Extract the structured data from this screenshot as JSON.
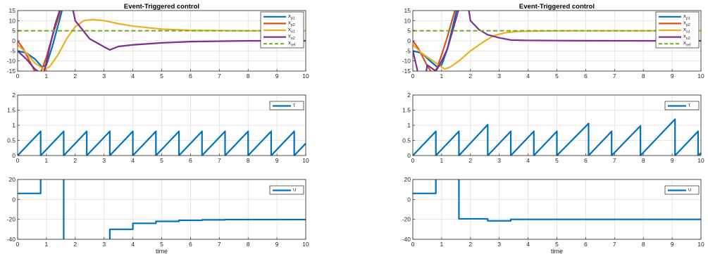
{
  "chart_data": [
    {
      "type": "line",
      "title": "Event-Triggered control",
      "xlabel": "",
      "ylabel": "",
      "xlim": [
        0,
        10
      ],
      "ylim": [
        -15,
        15
      ],
      "xticks": [
        0,
        1,
        2,
        3,
        4,
        5,
        6,
        7,
        8,
        9,
        10
      ],
      "yticks": [
        -15,
        -10,
        -5,
        0,
        5,
        10,
        15
      ],
      "grid": true,
      "legend_position": "top-right",
      "series": [
        {
          "name": "x_p1",
          "legend_base": "x",
          "legend_sub": "p1",
          "color": "#0072BD",
          "style": "solid",
          "x": [
            0,
            0.3,
            0.6,
            0.85,
            1.0,
            1.2,
            1.45,
            1.7
          ],
          "y": [
            -5,
            -6,
            -9,
            -13,
            -12,
            -3,
            10,
            24
          ]
        },
        {
          "name": "x_p2",
          "legend_base": "x",
          "legend_sub": "p2",
          "color": "#D95319",
          "style": "solid",
          "x": [
            0,
            0.2,
            0.45,
            0.7,
            0.85,
            1.0,
            1.2,
            1.45,
            1.7
          ],
          "y": [
            0,
            -4,
            -11,
            -18,
            -14,
            -8,
            2,
            13,
            25
          ]
        },
        {
          "name": "x_o1",
          "legend_base": "x",
          "legend_sub": "o1",
          "color": "#EDB120",
          "style": "solid",
          "x": [
            0,
            0.3,
            0.6,
            0.9,
            1.1,
            1.4,
            1.7,
            2.0,
            2.3,
            2.6,
            3.0,
            3.5,
            4.0,
            5.0,
            6.0,
            7.0,
            8.0,
            10.0
          ],
          "y": [
            -2,
            -6,
            -11,
            -14,
            -13,
            -7,
            1,
            7,
            10,
            10.5,
            10,
            8.5,
            7.3,
            5.8,
            5.2,
            5.05,
            5.0,
            5.0
          ]
        },
        {
          "name": "x_o2",
          "legend_base": "x",
          "legend_sub": "o2",
          "color": "#7E2F8E",
          "style": "solid",
          "x": [
            0,
            0.3,
            0.6,
            0.9,
            1.1,
            1.3,
            1.55,
            1.75,
            2.0,
            2.5,
            3.0,
            3.2,
            3.5,
            4.0,
            5.0,
            6.0,
            8.0,
            10.0
          ],
          "y": [
            -5,
            -9,
            -14,
            -17,
            -4,
            8,
            19,
            27,
            10,
            1,
            -3,
            -4.5,
            -2.8,
            -2,
            -1,
            -0.4,
            0,
            0
          ]
        },
        {
          "name": "x_ref",
          "legend_base": "x",
          "legend_sub": "ref",
          "color": "#77AC30",
          "style": "dashed",
          "x": [
            0,
            10
          ],
          "y": [
            5,
            5
          ]
        }
      ]
    },
    {
      "type": "line",
      "title": "Event-Triggered control",
      "xlabel": "",
      "ylabel": "",
      "xlim": [
        0,
        10
      ],
      "ylim": [
        -15,
        15
      ],
      "xticks": [
        0,
        1,
        2,
        3,
        4,
        5,
        6,
        7,
        8,
        9,
        10
      ],
      "yticks": [
        -15,
        -10,
        -5,
        0,
        5,
        10,
        15
      ],
      "grid": true,
      "legend_position": "top-right",
      "series": [
        {
          "name": "x_p1",
          "legend_base": "x",
          "legend_sub": "p1",
          "color": "#0072BD",
          "style": "solid",
          "x": [
            0,
            0.3,
            0.6,
            0.85,
            1.0,
            1.2,
            1.4,
            1.6
          ],
          "y": [
            -5,
            -6,
            -10,
            -13,
            -12,
            -4,
            8,
            20
          ]
        },
        {
          "name": "x_p2",
          "legend_base": "x",
          "legend_sub": "p2",
          "color": "#D95319",
          "style": "solid",
          "x": [
            0,
            0.2,
            0.45,
            0.7,
            0.85,
            1.0,
            1.2,
            1.4,
            1.6
          ],
          "y": [
            0,
            -4,
            -11,
            -17,
            -13,
            -7,
            2,
            12,
            22
          ]
        },
        {
          "name": "x_o1",
          "legend_base": "x",
          "legend_sub": "o1",
          "color": "#EDB120",
          "style": "solid",
          "x": [
            0,
            0.3,
            0.6,
            0.9,
            1.1,
            1.3,
            1.6,
            2.0,
            2.4,
            2.8,
            3.2,
            3.6,
            4.0,
            5.0,
            6.0,
            8.0,
            10.0
          ],
          "y": [
            -2,
            -6,
            -9,
            -12,
            -14,
            -13,
            -10,
            -5,
            -1,
            2.5,
            4,
            4.6,
            4.8,
            4.95,
            5.0,
            5.0,
            5.0
          ]
        },
        {
          "name": "x_o2",
          "legend_base": "x",
          "legend_sub": "o2",
          "color": "#7E2F8E",
          "style": "solid",
          "x": [
            0,
            0.15,
            0.3,
            0.5,
            0.8,
            1.0,
            1.2,
            1.4,
            1.6,
            1.8,
            2.0,
            2.3,
            2.6,
            3.0,
            3.4,
            4.0,
            5.0,
            6.0,
            8.0,
            10.0
          ],
          "y": [
            -5,
            -14,
            -30,
            -12,
            -15,
            -10,
            -4,
            6,
            16,
            28,
            10,
            5.5,
            3,
            1.5,
            0.4,
            0.2,
            0.1,
            0.05,
            0,
            0
          ]
        },
        {
          "name": "x_ref",
          "legend_base": "x",
          "legend_sub": "ref",
          "color": "#77AC30",
          "style": "dashed",
          "x": [
            0,
            10
          ],
          "y": [
            5,
            5
          ]
        }
      ]
    },
    {
      "type": "line",
      "title": "",
      "xlabel": "",
      "ylabel": "",
      "xlim": [
        0,
        10
      ],
      "ylim": [
        0,
        2
      ],
      "xticks": [
        0,
        1,
        2,
        3,
        4,
        5,
        6,
        7,
        8,
        9,
        10
      ],
      "yticks": [
        0,
        0.5,
        1,
        1.5,
        2
      ],
      "grid": true,
      "legend_position": "top-right",
      "series": [
        {
          "name": "τ",
          "legend_base": "τ",
          "legend_sub": "",
          "color": "#0072BD",
          "style": "solid",
          "x": [
            0,
            0.8,
            0.8,
            1.6,
            1.6,
            2.4,
            2.4,
            3.2,
            3.2,
            4.0,
            4.0,
            4.8,
            4.8,
            5.6,
            5.6,
            6.4,
            6.4,
            7.2,
            7.2,
            8.0,
            8.0,
            8.8,
            8.8,
            9.6,
            9.6,
            10.0
          ],
          "y": [
            0,
            0.8,
            0,
            0.8,
            0,
            0.8,
            0,
            0.8,
            0,
            0.8,
            0,
            0.8,
            0,
            0.8,
            0,
            0.8,
            0,
            0.8,
            0,
            0.8,
            0,
            0.8,
            0,
            0.8,
            0,
            0.4
          ]
        }
      ]
    },
    {
      "type": "line",
      "title": "",
      "xlabel": "",
      "ylabel": "",
      "xlim": [
        0,
        10
      ],
      "ylim": [
        0,
        2
      ],
      "xticks": [
        0,
        1,
        2,
        3,
        4,
        5,
        6,
        7,
        8,
        9,
        10
      ],
      "yticks": [
        0,
        0.5,
        1,
        1.5,
        2
      ],
      "grid": true,
      "legend_position": "top-right",
      "series": [
        {
          "name": "τ",
          "legend_base": "τ",
          "legend_sub": "",
          "color": "#0072BD",
          "style": "solid",
          "x": [
            0,
            0.8,
            0.8,
            1.6,
            1.6,
            2.6,
            2.6,
            3.4,
            3.4,
            4.2,
            4.2,
            5.0,
            5.0,
            6.1,
            6.1,
            6.9,
            6.9,
            7.9,
            7.9,
            9.1,
            9.1,
            9.9,
            9.9,
            10.0
          ],
          "y": [
            0,
            0.8,
            0,
            0.8,
            0,
            1.02,
            0,
            0.8,
            0,
            0.8,
            0,
            0.8,
            0,
            1.06,
            0,
            0.8,
            0,
            0.98,
            0,
            1.2,
            0,
            0.8,
            0,
            0.08
          ]
        }
      ]
    },
    {
      "type": "line",
      "title": "",
      "xlabel": "time",
      "ylabel": "",
      "xlim": [
        0,
        10
      ],
      "ylim": [
        -40,
        20
      ],
      "xticks": [
        0,
        1,
        2,
        3,
        4,
        5,
        6,
        7,
        8,
        9,
        10
      ],
      "yticks": [
        -40,
        -20,
        0,
        20
      ],
      "grid": true,
      "legend_position": "top-right",
      "series": [
        {
          "name": "u",
          "legend_base": "u",
          "legend_sub": "",
          "color": "#0072BD",
          "style": "solid",
          "x": [
            0,
            0.8,
            0.8,
            1.6,
            1.6,
            3.2,
            3.2,
            4.0,
            4.0,
            4.8,
            4.8,
            5.6,
            5.6,
            6.4,
            6.4,
            7.2,
            7.2,
            10.0
          ],
          "y": [
            6,
            6,
            60,
            60,
            -60,
            -60,
            -30,
            -30,
            -24,
            -24,
            -22,
            -22,
            -21,
            -21,
            -20.5,
            -20.5,
            -20.2,
            -20.2
          ]
        }
      ]
    },
    {
      "type": "line",
      "title": "",
      "xlabel": "time",
      "ylabel": "",
      "xlim": [
        0,
        10
      ],
      "ylim": [
        -40,
        20
      ],
      "xticks": [
        0,
        1,
        2,
        3,
        4,
        5,
        6,
        7,
        8,
        9,
        10
      ],
      "yticks": [
        -40,
        -20,
        0,
        20
      ],
      "grid": true,
      "legend_position": "top-right",
      "series": [
        {
          "name": "u",
          "legend_base": "u",
          "legend_sub": "",
          "color": "#0072BD",
          "style": "solid",
          "x": [
            0,
            0.8,
            0.8,
            1.6,
            1.6,
            2.6,
            2.6,
            3.4,
            3.4,
            10.0
          ],
          "y": [
            6,
            6,
            60,
            60,
            -19.5,
            -19.5,
            -21.5,
            -21.5,
            -20,
            -20
          ]
        }
      ]
    }
  ]
}
